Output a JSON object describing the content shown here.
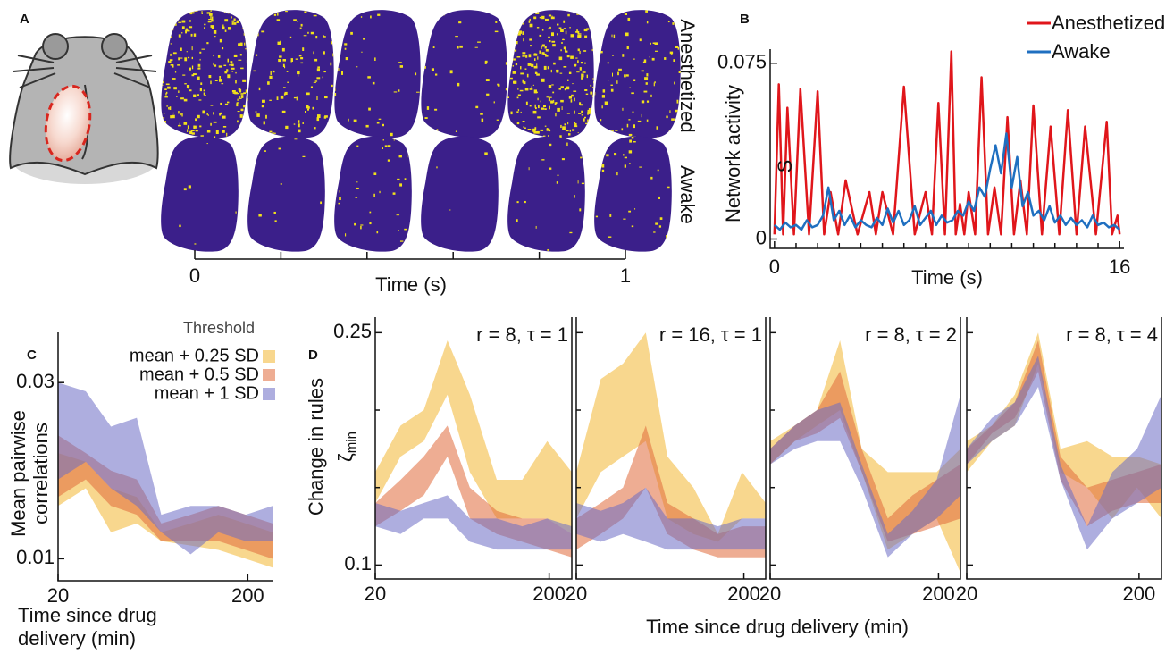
{
  "chart_data": [
    {
      "label": "A",
      "type": "image-strip",
      "rows": [
        "Anesthetized",
        "Awake"
      ],
      "xlabel": "Time (s)",
      "xlim": [
        0,
        1
      ],
      "xticks": [
        0,
        1
      ],
      "minor_xticks": [
        0.2,
        0.4,
        0.6,
        0.8
      ]
    },
    {
      "label": "B",
      "type": "line",
      "xlabel": "Time (s)",
      "ylabel": "Network activity",
      "annotation": "S",
      "xlim": [
        -0.2,
        16.2
      ],
      "xticks": [
        0,
        16
      ],
      "minor_xticks": [
        1,
        2,
        3,
        4,
        5,
        6,
        7,
        8,
        9,
        10,
        11,
        12,
        13,
        14,
        15
      ],
      "ylim": [
        -0.004,
        0.081
      ],
      "yticks": [
        0,
        0.075
      ],
      "series": [
        {
          "name": "Anesthetized",
          "color": "#e0161b",
          "x": [
            0,
            0.2,
            0.4,
            0.6,
            0.9,
            1.2,
            1.6,
            2.0,
            2.3,
            2.6,
            2.95,
            3.3,
            3.85,
            4.4,
            4.7,
            5.0,
            5.5,
            6.0,
            6.5,
            7.0,
            7.3,
            7.6,
            7.9,
            8.2,
            8.4,
            8.6,
            8.8,
            9.0,
            9.3,
            9.6,
            9.9,
            10.2,
            10.5,
            10.8,
            11.1,
            11.4,
            11.7,
            12.0,
            12.4,
            12.8,
            13.2,
            13.6,
            14.0,
            14.4,
            14.9,
            15.4,
            15.65,
            15.9,
            16.0
          ],
          "values": [
            0.002,
            0.066,
            0.002,
            0.056,
            0.002,
            0.064,
            0.002,
            0.063,
            0.002,
            0.02,
            0.002,
            0.025,
            0.002,
            0.02,
            0.002,
            0.02,
            0.002,
            0.065,
            0.002,
            0.02,
            0.002,
            0.058,
            0.002,
            0.08,
            0.002,
            0.015,
            0.002,
            0.02,
            0.002,
            0.069,
            0.002,
            0.022,
            0.002,
            0.052,
            0.002,
            0.025,
            0.002,
            0.057,
            0.002,
            0.048,
            0.002,
            0.055,
            0.002,
            0.048,
            0.002,
            0.05,
            0.002,
            0.01,
            0.002
          ]
        },
        {
          "name": "Awake",
          "color": "#1f6fc0",
          "x": [
            0,
            0.25,
            0.5,
            0.75,
            1,
            1.25,
            1.5,
            1.75,
            2,
            2.25,
            2.5,
            2.75,
            3,
            3.25,
            3.5,
            3.75,
            4,
            4.25,
            4.5,
            4.75,
            5,
            5.25,
            5.5,
            5.75,
            6,
            6.25,
            6.5,
            6.75,
            7,
            7.25,
            7.5,
            7.75,
            8,
            8.25,
            8.5,
            8.75,
            9,
            9.25,
            9.5,
            9.75,
            10,
            10.25,
            10.5,
            10.75,
            11,
            11.25,
            11.5,
            11.75,
            12,
            12.25,
            12.5,
            12.75,
            13,
            13.25,
            13.5,
            13.75,
            14,
            14.25,
            14.5,
            14.75,
            15,
            15.25,
            15.5,
            15.75,
            16
          ],
          "values": [
            0.006,
            0.004,
            0.007,
            0.005,
            0.006,
            0.004,
            0.008,
            0.005,
            0.006,
            0.01,
            0.022,
            0.008,
            0.012,
            0.006,
            0.01,
            0.005,
            0.008,
            0.006,
            0.005,
            0.009,
            0.006,
            0.013,
            0.007,
            0.012,
            0.006,
            0.008,
            0.014,
            0.006,
            0.009,
            0.012,
            0.006,
            0.01,
            0.007,
            0.008,
            0.012,
            0.01,
            0.016,
            0.012,
            0.022,
            0.018,
            0.03,
            0.04,
            0.028,
            0.045,
            0.022,
            0.035,
            0.014,
            0.02,
            0.01,
            0.012,
            0.008,
            0.014,
            0.007,
            0.01,
            0.006,
            0.009,
            0.006,
            0.008,
            0.005,
            0.01,
            0.006,
            0.007,
            0.005,
            0.006,
            0.004
          ]
        }
      ]
    },
    {
      "label": "C",
      "type": "band",
      "legend_title": "Threshold",
      "xlabel": [
        "Time since drug",
        "delivery (min)"
      ],
      "ylabel": [
        "Mean pairwise",
        "correlations"
      ],
      "xlog": true,
      "xlim": [
        20,
        270
      ],
      "xticks": [
        20,
        200
      ],
      "ylim": [
        0.0075,
        0.0357
      ],
      "yticks": [
        0.01,
        0.03
      ],
      "x": [
        20,
        28,
        38,
        52,
        70,
        100,
        140,
        195,
        270
      ],
      "series": [
        {
          "name": "mean + 0.25 SD",
          "color": "#f2b632",
          "low": [
            0.016,
            0.018,
            0.013,
            0.014,
            0.012,
            0.0115,
            0.011,
            0.01,
            0.009
          ],
          "high": [
            0.022,
            0.021,
            0.018,
            0.017,
            0.013,
            0.014,
            0.015,
            0.014,
            0.013
          ]
        },
        {
          "name": "mean + 0.5 SD",
          "color": "#e06a3a",
          "low": [
            0.017,
            0.019,
            0.016,
            0.015,
            0.012,
            0.012,
            0.012,
            0.011,
            0.01
          ],
          "high": [
            0.024,
            0.022,
            0.02,
            0.019,
            0.014,
            0.015,
            0.016,
            0.015,
            0.014
          ]
        },
        {
          "name": "mean + 1 SD",
          "color": "#6b6bc4",
          "low": [
            0.019,
            0.021,
            0.018,
            0.016,
            0.013,
            0.0105,
            0.013,
            0.012,
            0.012
          ],
          "high": [
            0.03,
            0.029,
            0.025,
            0.026,
            0.015,
            0.016,
            0.016,
            0.015,
            0.016
          ]
        }
      ]
    },
    {
      "label": "D",
      "type": "band-panels",
      "xlabel": "Time since drug delivery (min)",
      "ylabel": "Change in rules",
      "ysymbol": "ζ",
      "ysymbol_sub": "min",
      "xlog": true,
      "xlim": [
        20,
        270
      ],
      "xticks": [
        20,
        200
      ],
      "ylim": [
        0.091,
        0.26
      ],
      "yticks": [
        0.1,
        0.25
      ],
      "minor_yticks": [
        0.15,
        0.2
      ],
      "x": [
        20,
        28,
        38,
        52,
        70,
        100,
        140,
        195,
        270
      ],
      "panels": [
        {
          "title": "r = 8, τ = 1",
          "series": [
            {
              "color": "#f2b632",
              "low": [
                0.14,
                0.17,
                0.18,
                0.21,
                0.16,
                0.13,
                0.13,
                0.13,
                0.12
              ],
              "high": [
                0.16,
                0.19,
                0.2,
                0.245,
                0.21,
                0.155,
                0.155,
                0.18,
                0.16
              ]
            },
            {
              "color": "#e06a3a",
              "low": [
                0.125,
                0.135,
                0.145,
                0.17,
                0.13,
                0.12,
                0.115,
                0.11,
                0.105
              ],
              "high": [
                0.14,
                0.155,
                0.17,
                0.19,
                0.15,
                0.135,
                0.13,
                0.13,
                0.12
              ]
            },
            {
              "color": "#6b6bc4",
              "low": [
                0.125,
                0.12,
                0.13,
                0.13,
                0.115,
                0.11,
                0.11,
                0.11,
                0.11
              ],
              "high": [
                0.14,
                0.135,
                0.14,
                0.145,
                0.13,
                0.13,
                0.125,
                0.13,
                0.125
              ]
            }
          ]
        },
        {
          "title": "r = 16, τ = 1",
          "series": [
            {
              "color": "#f2b632",
              "low": [
                0.13,
                0.16,
                0.17,
                0.18,
                0.13,
                0.12,
                0.115,
                0.13,
                0.13
              ],
              "high": [
                0.16,
                0.22,
                0.23,
                0.25,
                0.17,
                0.15,
                0.12,
                0.16,
                0.14
              ]
            },
            {
              "color": "#e06a3a",
              "low": [
                0.11,
                0.12,
                0.13,
                0.15,
                0.12,
                0.11,
                0.105,
                0.105,
                0.105
              ],
              "high": [
                0.13,
                0.14,
                0.15,
                0.19,
                0.14,
                0.13,
                0.12,
                0.125,
                0.125
              ]
            },
            {
              "color": "#6b6bc4",
              "low": [
                0.12,
                0.115,
                0.12,
                0.115,
                0.11,
                0.11,
                0.11,
                0.11,
                0.11
              ],
              "high": [
                0.14,
                0.135,
                0.14,
                0.15,
                0.13,
                0.13,
                0.125,
                0.13,
                0.13
              ]
            }
          ]
        },
        {
          "title": "r = 8, τ = 2",
          "series": [
            {
              "color": "#f2b632",
              "low": [
                0.165,
                0.18,
                0.19,
                0.2,
                0.16,
                0.11,
                0.12,
                0.13,
                0.095
              ],
              "high": [
                0.18,
                0.19,
                0.2,
                0.245,
                0.175,
                0.16,
                0.16,
                0.16,
                0.175
              ]
            },
            {
              "color": "#e06a3a",
              "low": [
                0.165,
                0.18,
                0.185,
                0.195,
                0.16,
                0.115,
                0.12,
                0.125,
                0.13
              ],
              "high": [
                0.175,
                0.19,
                0.2,
                0.225,
                0.175,
                0.13,
                0.145,
                0.155,
                0.165
              ]
            },
            {
              "color": "#6b6bc4",
              "low": [
                0.165,
                0.175,
                0.18,
                0.18,
                0.15,
                0.105,
                0.12,
                0.13,
                0.145
              ],
              "high": [
                0.175,
                0.19,
                0.2,
                0.205,
                0.165,
                0.12,
                0.135,
                0.155,
                0.21
              ]
            }
          ]
        },
        {
          "title": "r = 8, τ = 4",
          "series": [
            {
              "color": "#f2b632",
              "low": [
                0.16,
                0.18,
                0.19,
                0.23,
                0.16,
                0.15,
                0.13,
                0.15,
                0.13
              ],
              "high": [
                0.18,
                0.19,
                0.21,
                0.25,
                0.175,
                0.18,
                0.17,
                0.17,
                0.165
              ]
            },
            {
              "color": "#e06a3a",
              "low": [
                0.165,
                0.185,
                0.195,
                0.225,
                0.155,
                0.125,
                0.135,
                0.14,
                0.14
              ],
              "high": [
                0.175,
                0.19,
                0.205,
                0.245,
                0.17,
                0.15,
                0.155,
                0.16,
                0.165
              ]
            },
            {
              "color": "#6b6bc4",
              "low": [
                0.165,
                0.18,
                0.19,
                0.215,
                0.155,
                0.11,
                0.13,
                0.14,
                0.15
              ],
              "high": [
                0.175,
                0.195,
                0.205,
                0.235,
                0.165,
                0.125,
                0.16,
                0.175,
                0.21
              ]
            }
          ]
        }
      ]
    }
  ]
}
